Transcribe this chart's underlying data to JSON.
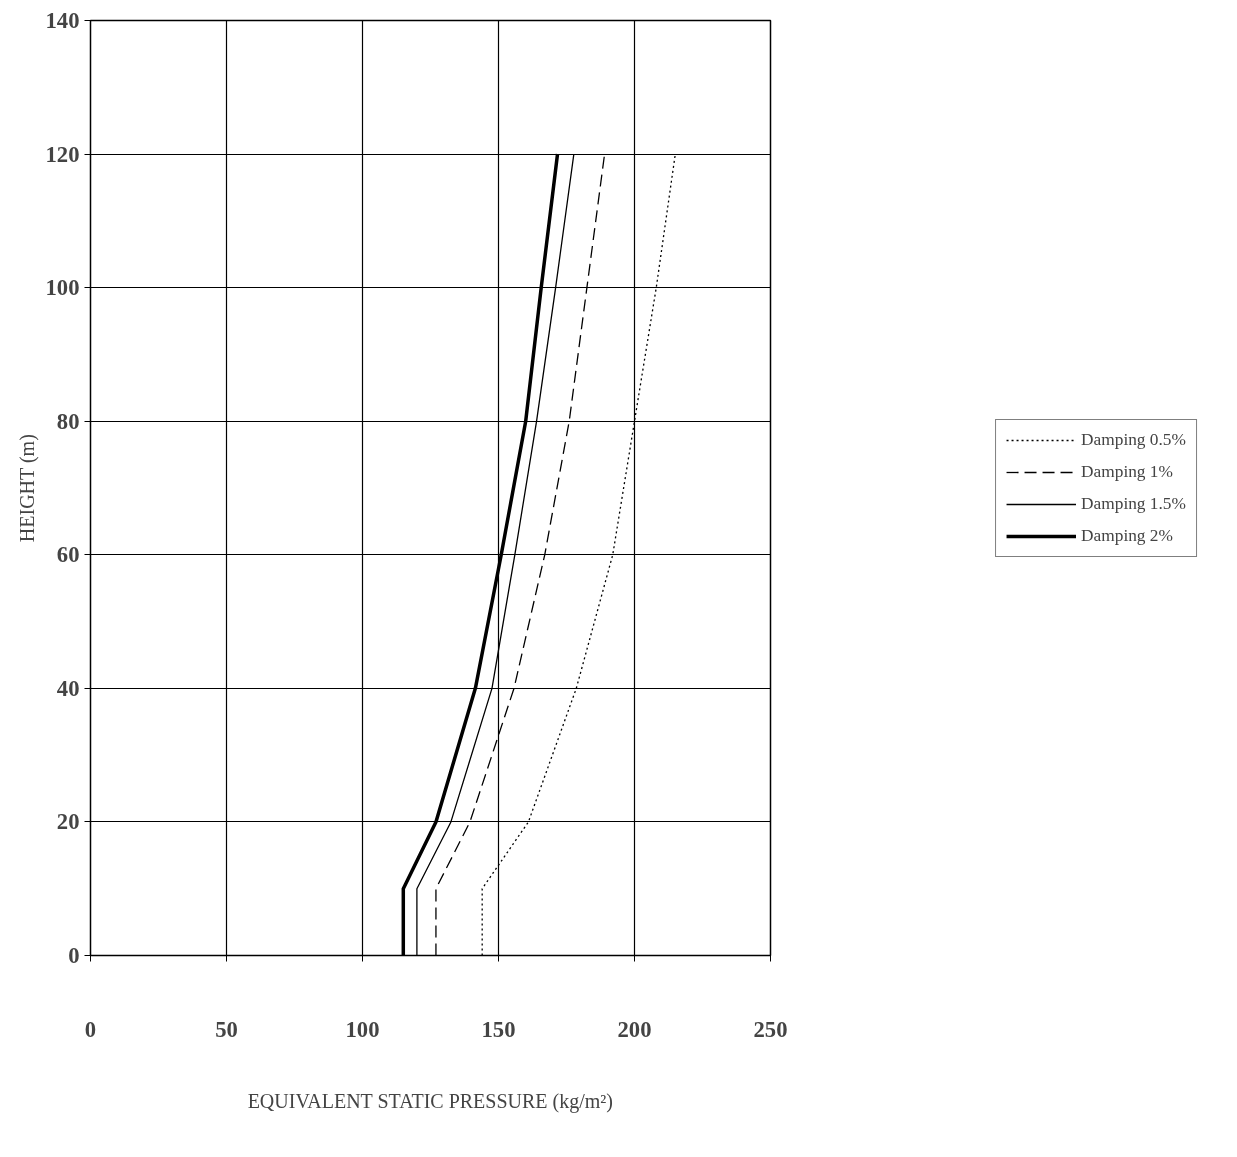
{
  "chart_data": {
    "type": "line",
    "xlabel": "EQUIVALENT STATIC PRESSURE (kg/m²)",
    "ylabel": "HEIGHT (m)",
    "xlim": [
      0,
      250
    ],
    "ylim": [
      0,
      140
    ],
    "xticks": [
      0,
      50,
      100,
      150,
      200,
      250
    ],
    "yticks": [
      0,
      20,
      40,
      60,
      80,
      100,
      120,
      140
    ],
    "grid": true,
    "legend": "right",
    "marker": "none",
    "series": [
      {
        "name": "Damping 0.5%",
        "color": "#000000",
        "line_style": "dotted",
        "x": [
          144,
          144,
          161,
          178.6,
          192,
          200,
          208,
          215
        ],
        "values": [
          0,
          10,
          20,
          40,
          60,
          80,
          100,
          120
        ]
      },
      {
        "name": "Damping 1%",
        "color": "#000000",
        "line_style": "dashed",
        "x": [
          127,
          127,
          139.5,
          155.7,
          167,
          176,
          182.5,
          189
        ],
        "values": [
          0,
          10,
          20,
          40,
          60,
          80,
          100,
          120
        ]
      },
      {
        "name": "Damping 1.5%",
        "color": "#000000",
        "line_style": "solid",
        "x": [
          120,
          120,
          132.5,
          147.6,
          156,
          164,
          171,
          177.7
        ],
        "values": [
          0,
          10,
          20,
          40,
          60,
          80,
          100,
          120
        ]
      },
      {
        "name": "Damping 2%",
        "color": "#000000",
        "line_style": "solid",
        "x": [
          115,
          115,
          127,
          141.5,
          151,
          160,
          165.7,
          171.7
        ],
        "values": [
          0,
          10,
          20,
          40,
          60,
          80,
          100,
          120
        ]
      }
    ]
  }
}
